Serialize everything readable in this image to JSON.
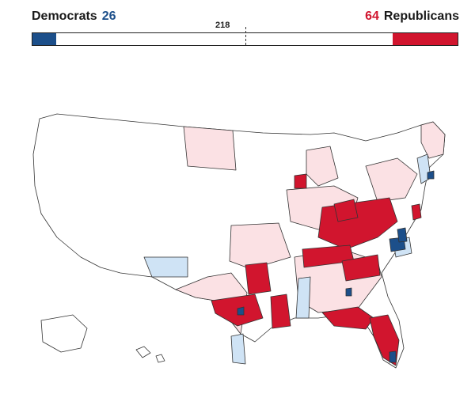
{
  "header": {
    "dem_label": "Democrats",
    "dem_count": "26",
    "rep_label": "Republicans",
    "rep_count": "64",
    "majority": "218"
  },
  "colors": {
    "dem_strong": "#1c4f8a",
    "dem_light": "#cfe3f5",
    "rep_strong": "#d1152e",
    "rep_light": "#fbe1e4",
    "border": "#333333"
  }
}
